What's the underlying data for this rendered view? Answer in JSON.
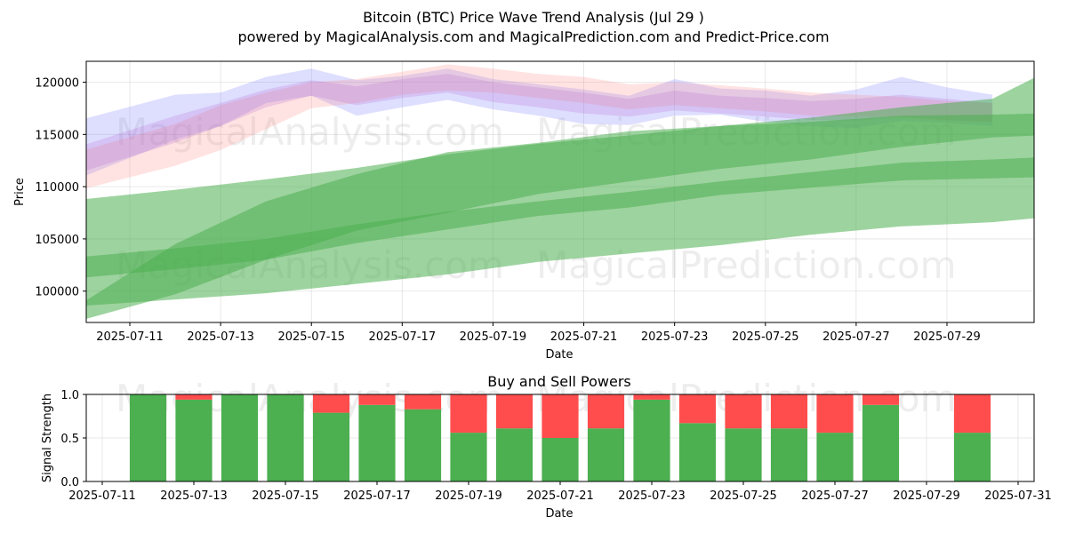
{
  "title": "Bitcoin (BTC) Price Wave Trend Analysis (Jul 29 )",
  "subtitle": "powered by MagicalAnalysis.com and MagicalPrediction.com and Predict-Price.com",
  "watermarks": [
    "MagicalAnalysis.com",
    "MagicalPrediction.com"
  ],
  "colors": {
    "blue_band": "#6b6bff",
    "red_band": "#ff8080",
    "purple_band": "#b266cc",
    "green_band": "#4caf50",
    "buy": "#4caf50",
    "sell": "#ff4d4d"
  },
  "chart_data": [
    {
      "type": "area",
      "xlabel": "Date",
      "ylabel": "Price",
      "x_ticks": [
        "2025-07-11",
        "2025-07-13",
        "2025-07-15",
        "2025-07-17",
        "2025-07-19",
        "2025-07-21",
        "2025-07-23",
        "2025-07-25",
        "2025-07-27",
        "2025-07-29"
      ],
      "y_ticks": [
        "100000",
        "105000",
        "110000",
        "115000",
        "120000"
      ],
      "xlim": [
        "2025-07-10",
        "2025-07-31"
      ],
      "ylim": [
        97000,
        122000
      ],
      "grid": true,
      "series": [
        {
          "color": "blue",
          "x": [
            "2025-07-10",
            "2025-07-12",
            "2025-07-13",
            "2025-07-14",
            "2025-07-15",
            "2025-07-16",
            "2025-07-17",
            "2025-07-18",
            "2025-07-19",
            "2025-07-20",
            "2025-07-21",
            "2025-07-22",
            "2025-07-23",
            "2025-07-24",
            "2025-07-25",
            "2025-07-26",
            "2025-07-27",
            "2025-07-28",
            "2025-07-29",
            "2025-07-30"
          ],
          "upper": [
            116500,
            118800,
            119000,
            120500,
            121300,
            120200,
            120600,
            121300,
            120300,
            119800,
            119300,
            118700,
            120300,
            119400,
            119200,
            118700,
            119300,
            120500,
            119500,
            118800
          ],
          "lower": [
            111000,
            114500,
            115800,
            118000,
            118700,
            116800,
            117600,
            118300,
            117400,
            116800,
            116000,
            115900,
            116800,
            116900,
            116200,
            115800,
            115600,
            116300,
            116100,
            115800
          ]
        },
        {
          "color": "red",
          "x": [
            "2025-07-10",
            "2025-07-12",
            "2025-07-13",
            "2025-07-14",
            "2025-07-15",
            "2025-07-16",
            "2025-07-17",
            "2025-07-18",
            "2025-07-19",
            "2025-07-20",
            "2025-07-21",
            "2025-07-22",
            "2025-07-23",
            "2025-07-24",
            "2025-07-25",
            "2025-07-26",
            "2025-07-27",
            "2025-07-28",
            "2025-07-29",
            "2025-07-30"
          ],
          "upper": [
            113500,
            116000,
            117800,
            119000,
            120000,
            120300,
            121000,
            121700,
            121300,
            120800,
            120500,
            119800,
            120000,
            119700,
            119400,
            119000,
            118800,
            118600,
            118200,
            118000
          ],
          "lower": [
            109800,
            112000,
            113500,
            115500,
            117500,
            118000,
            118800,
            119200,
            119000,
            118500,
            118000,
            117400,
            117800,
            117500,
            117200,
            116800,
            116700,
            116600,
            116300,
            116200
          ]
        },
        {
          "color": "purple",
          "x": [
            "2025-07-10",
            "2025-07-12",
            "2025-07-13",
            "2025-07-14",
            "2025-07-15",
            "2025-07-16",
            "2025-07-17",
            "2025-07-18",
            "2025-07-19",
            "2025-07-20",
            "2025-07-21",
            "2025-07-22",
            "2025-07-23",
            "2025-07-24",
            "2025-07-25",
            "2025-07-26",
            "2025-07-27",
            "2025-07-28",
            "2025-07-29",
            "2025-07-30"
          ],
          "upper": [
            114000,
            116800,
            118000,
            119300,
            120200,
            119600,
            120300,
            120800,
            120000,
            119500,
            119000,
            118400,
            119200,
            118700,
            118500,
            118200,
            118400,
            118800,
            118400,
            118000
          ],
          "lower": [
            111500,
            114200,
            115800,
            117600,
            118700,
            117800,
            118500,
            119000,
            118100,
            117600,
            117000,
            116700,
            117300,
            117000,
            116700,
            116400,
            116300,
            116700,
            116400,
            116200
          ]
        },
        {
          "color": "green",
          "x": [
            "2025-07-10",
            "2025-07-12",
            "2025-07-14",
            "2025-07-16",
            "2025-07-18",
            "2025-07-20",
            "2025-07-22",
            "2025-07-24",
            "2025-07-26",
            "2025-07-28",
            "2025-07-30",
            "2025-07-31"
          ],
          "upper": [
            108800,
            109700,
            110700,
            111800,
            113100,
            114100,
            114900,
            115800,
            116600,
            117600,
            118400,
            120600
          ],
          "lower": [
            98600,
            99200,
            99800,
            100700,
            101600,
            102800,
            103600,
            104400,
            105400,
            106200,
            106600,
            107000
          ]
        },
        {
          "color": "green",
          "x": [
            "2025-07-10",
            "2025-07-12",
            "2025-07-14",
            "2025-07-16",
            "2025-07-18",
            "2025-07-20",
            "2025-07-22",
            "2025-07-24",
            "2025-07-26",
            "2025-07-28",
            "2025-07-30",
            "2025-07-31"
          ],
          "upper": [
            103300,
            104100,
            105000,
            106400,
            107600,
            108600,
            109500,
            110500,
            111400,
            112300,
            112600,
            112800
          ],
          "lower": [
            101300,
            102100,
            103000,
            104600,
            105900,
            107200,
            108000,
            109200,
            109900,
            110600,
            110800,
            110900
          ]
        },
        {
          "color": "green",
          "x": [
            "2025-07-10",
            "2025-07-12",
            "2025-07-14",
            "2025-07-16",
            "2025-07-18",
            "2025-07-20",
            "2025-07-22",
            "2025-07-24",
            "2025-07-26",
            "2025-07-28",
            "2025-07-30",
            "2025-07-31"
          ],
          "upper": [
            99000,
            104500,
            108600,
            111200,
            113300,
            114200,
            115300,
            115800,
            116200,
            116800,
            116900,
            117000
          ],
          "lower": [
            97300,
            99700,
            103000,
            105800,
            107500,
            109300,
            110500,
            111700,
            112600,
            113800,
            114700,
            114900
          ]
        }
      ]
    },
    {
      "type": "bar",
      "title": "Buy and Sell Powers",
      "xlabel": "Date",
      "ylabel": "Signal Strength",
      "x_ticks": [
        "2025-07-11",
        "2025-07-13",
        "2025-07-15",
        "2025-07-17",
        "2025-07-19",
        "2025-07-21",
        "2025-07-23",
        "2025-07-25",
        "2025-07-27",
        "2025-07-29",
        "2025-07-31"
      ],
      "y_ticks": [
        "0.0",
        "0.5",
        "1.0"
      ],
      "ylim": [
        0,
        1
      ],
      "grid": true,
      "categories": [
        "2025-07-12",
        "2025-07-13",
        "2025-07-14",
        "2025-07-15",
        "2025-07-16",
        "2025-07-17",
        "2025-07-18",
        "2025-07-19",
        "2025-07-20",
        "2025-07-21",
        "2025-07-22",
        "2025-07-23",
        "2025-07-24",
        "2025-07-25",
        "2025-07-26",
        "2025-07-27",
        "2025-07-28",
        "2025-07-30"
      ],
      "series": [
        {
          "color": "green",
          "values": [
            1.0,
            0.94,
            1.0,
            1.0,
            0.79,
            0.88,
            0.83,
            0.56,
            0.61,
            0.5,
            0.61,
            0.94,
            0.67,
            0.61,
            0.61,
            0.56,
            0.88,
            0.56
          ]
        },
        {
          "color": "red",
          "values": [
            0.0,
            0.06,
            0.0,
            0.0,
            0.21,
            0.12,
            0.17,
            0.44,
            0.39,
            0.5,
            0.39,
            0.06,
            0.33,
            0.39,
            0.39,
            0.44,
            0.12,
            0.44
          ]
        }
      ]
    }
  ]
}
